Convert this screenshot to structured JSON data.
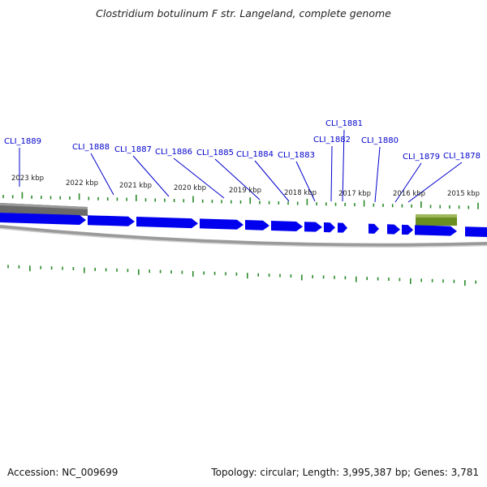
{
  "title": "Clostridium botulinum F str. Langeland, complete genome",
  "footer": {
    "accession": "Accession: NC_009699",
    "summary": "Topology: circular; Length: 3,995,387 bp; Genes: 3,781"
  },
  "colors": {
    "gene_forward": "#0000ee",
    "gene_reverse": "#666666",
    "feature_other": "#6b8e23",
    "tick": "#2a8a2a",
    "label": "#0000cc",
    "backbone": "#888888"
  },
  "position_labels": [
    "2023 kbp",
    "2022 kbp",
    "2021 kbp",
    "2020 kbp",
    "2019 kbp",
    "2018 kbp",
    "2017 kbp",
    "2016 kbp",
    "2015 kbp"
  ],
  "gene_labels": [
    "CLI_1889",
    "CLI_1888",
    "CLI_1887",
    "CLI_1886",
    "CLI_1885",
    "CLI_1884",
    "CLI_1883",
    "CLI_1882",
    "CLI_1881",
    "CLI_1880",
    "CLI_1879",
    "CLI_1878"
  ]
}
